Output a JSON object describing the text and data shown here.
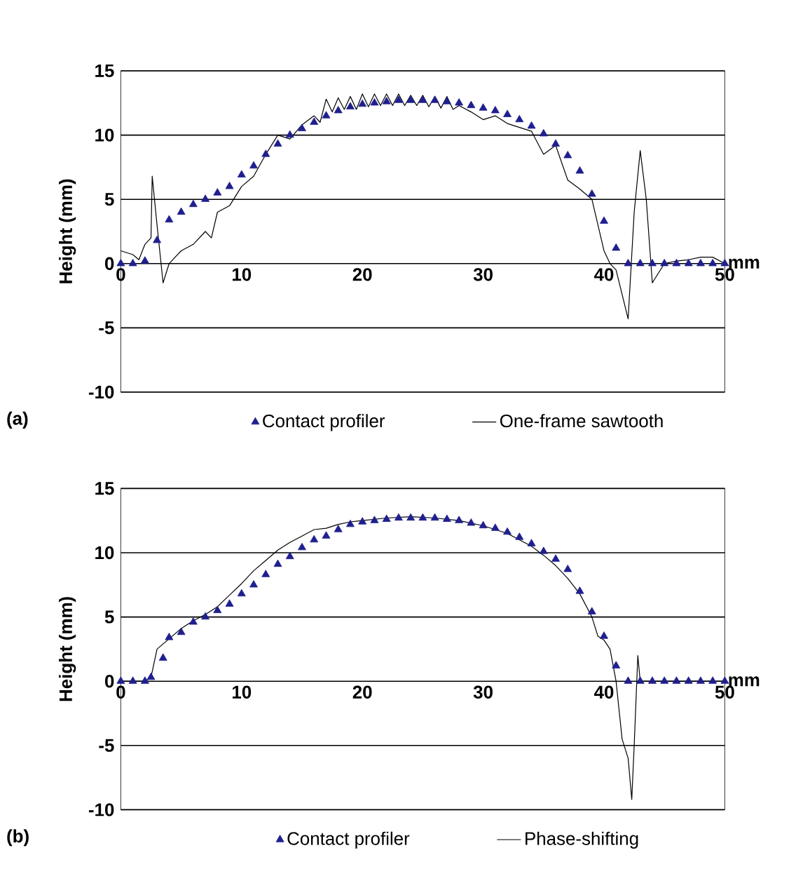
{
  "chart_data": [
    {
      "type": "scatter",
      "xlabel": "mm",
      "ylabel": "Height (mm)",
      "annotations": [
        "(a)"
      ],
      "xlim": [
        0,
        50
      ],
      "ylim": [
        -10,
        15
      ],
      "xticks": [
        0,
        10,
        20,
        30,
        40,
        50
      ],
      "yticks": [
        -10,
        -5,
        0,
        5,
        10,
        15
      ],
      "grid": "y",
      "legend": "bottom",
      "series": [
        {
          "name": "Contact profiler",
          "marker": "triangle",
          "color": "#1f1f8f",
          "x": [
            0,
            1,
            2,
            3,
            4,
            5,
            6,
            7,
            8,
            9,
            10,
            11,
            12,
            13,
            14,
            15,
            16,
            17,
            18,
            19,
            20,
            21,
            22,
            23,
            24,
            25,
            26,
            27,
            28,
            29,
            30,
            31,
            32,
            33,
            34,
            35,
            36,
            37,
            38,
            39,
            40,
            41,
            42,
            43,
            44,
            45,
            46,
            47,
            48,
            49,
            50
          ],
          "values": [
            0,
            0,
            0.2,
            1.8,
            3.4,
            4.0,
            4.6,
            5.0,
            5.5,
            6.0,
            6.9,
            7.6,
            8.5,
            9.3,
            10.0,
            10.5,
            11.0,
            11.5,
            11.9,
            12.2,
            12.4,
            12.5,
            12.6,
            12.7,
            12.7,
            12.7,
            12.7,
            12.6,
            12.5,
            12.3,
            12.1,
            11.9,
            11.6,
            11.2,
            10.7,
            10.1,
            9.3,
            8.4,
            7.2,
            5.4,
            3.3,
            1.2,
            0,
            0,
            0,
            0,
            0,
            0,
            0,
            0,
            0
          ]
        },
        {
          "name": "One-frame sawtooth",
          "type": "line",
          "line_style": "solid",
          "color": "#000000",
          "x": [
            0,
            1,
            1.5,
            2,
            2.5,
            2.6,
            3,
            3.5,
            4,
            5,
            6,
            7,
            7.5,
            8,
            9,
            10,
            11,
            12,
            13,
            14,
            15,
            16,
            16.5,
            17,
            17.5,
            18,
            18.5,
            19,
            19.5,
            20,
            20.5,
            21,
            21.5,
            22,
            22.5,
            23,
            23.5,
            24,
            24.5,
            25,
            25.5,
            26,
            26.5,
            27,
            27.5,
            28,
            29,
            30,
            31,
            32,
            33,
            34,
            35,
            36,
            37,
            38,
            39,
            40,
            40.5,
            41,
            42,
            42.5,
            43,
            43.5,
            44,
            45,
            46,
            47,
            48,
            49,
            50
          ],
          "values": [
            1,
            0.7,
            0.3,
            1.5,
            2,
            6.8,
            3,
            -1.5,
            0,
            1,
            1.5,
            2.5,
            2,
            4,
            4.5,
            6,
            6.8,
            8.5,
            10,
            9.7,
            10.8,
            11.5,
            11,
            12.8,
            11.8,
            12.9,
            12,
            13,
            12,
            13.2,
            12.2,
            13.2,
            12.3,
            13.2,
            12.3,
            13.2,
            12.3,
            13.1,
            12.3,
            13.1,
            12.2,
            13,
            12.1,
            13,
            12,
            12.3,
            11.8,
            11.2,
            11.5,
            10.9,
            10.6,
            10.3,
            8.5,
            9.2,
            6.5,
            5.8,
            5,
            1,
            0,
            -0.5,
            -4.3,
            4,
            8.8,
            5,
            -1.5,
            0,
            0.2,
            0.3,
            0.5,
            0.5,
            0
          ]
        }
      ]
    },
    {
      "type": "scatter",
      "xlabel": "mm",
      "ylabel": "Height (mm)",
      "annotations": [
        "(b)"
      ],
      "xlim": [
        0,
        50
      ],
      "ylim": [
        -10,
        15
      ],
      "xticks": [
        0,
        10,
        20,
        30,
        40,
        50
      ],
      "yticks": [
        -10,
        -5,
        0,
        5,
        10,
        15
      ],
      "grid": "y",
      "legend": "bottom",
      "series": [
        {
          "name": "Contact profiler",
          "marker": "triangle",
          "color": "#1f1f8f",
          "x": [
            0,
            1,
            2,
            2.5,
            3.5,
            4,
            5,
            6,
            7,
            8,
            9,
            10,
            11,
            12,
            13,
            14,
            15,
            16,
            17,
            18,
            19,
            20,
            21,
            22,
            23,
            24,
            25,
            26,
            27,
            28,
            29,
            30,
            31,
            32,
            33,
            34,
            35,
            36,
            37,
            38,
            39,
            40,
            41,
            42,
            43,
            44,
            45,
            46,
            47,
            48,
            49,
            50
          ],
          "values": [
            0,
            0,
            0,
            0.3,
            1.8,
            3.4,
            3.8,
            4.6,
            5.0,
            5.5,
            6.0,
            6.8,
            7.5,
            8.3,
            9.1,
            9.7,
            10.4,
            11.0,
            11.3,
            11.8,
            12.2,
            12.4,
            12.5,
            12.6,
            12.7,
            12.7,
            12.7,
            12.7,
            12.6,
            12.5,
            12.3,
            12.1,
            11.9,
            11.6,
            11.2,
            10.7,
            10.1,
            9.5,
            8.7,
            7.0,
            5.4,
            3.5,
            1.2,
            0,
            0,
            0,
            0,
            0,
            0,
            0,
            0,
            0
          ]
        },
        {
          "name": "Phase-shifting",
          "type": "line",
          "line_style": "solid",
          "color": "#000000",
          "x": [
            0,
            1,
            2,
            2.5,
            3,
            4,
            5,
            6,
            7,
            8,
            9,
            10,
            11,
            12,
            13,
            14,
            15,
            16,
            17,
            18,
            19,
            20,
            22,
            24,
            26,
            28,
            30,
            32,
            34,
            35,
            36,
            37,
            38,
            39,
            39.5,
            40,
            40.5,
            41,
            41.5,
            42,
            42.3,
            42.5,
            42.8,
            43,
            44,
            46,
            48,
            50
          ],
          "values": [
            0,
            0,
            0,
            0.3,
            2.5,
            3.3,
            4.1,
            4.7,
            5.2,
            5.8,
            6.7,
            7.6,
            8.6,
            9.4,
            10.2,
            10.8,
            11.3,
            11.8,
            11.9,
            12.2,
            12.4,
            12.5,
            12.7,
            12.8,
            12.7,
            12.5,
            12.1,
            11.5,
            10.5,
            9.8,
            9.0,
            8.0,
            6.8,
            5.0,
            3.5,
            3.2,
            2.5,
            0,
            -4.5,
            -6,
            -9.2,
            -5,
            2,
            0,
            0,
            0,
            0,
            0
          ]
        }
      ]
    }
  ]
}
